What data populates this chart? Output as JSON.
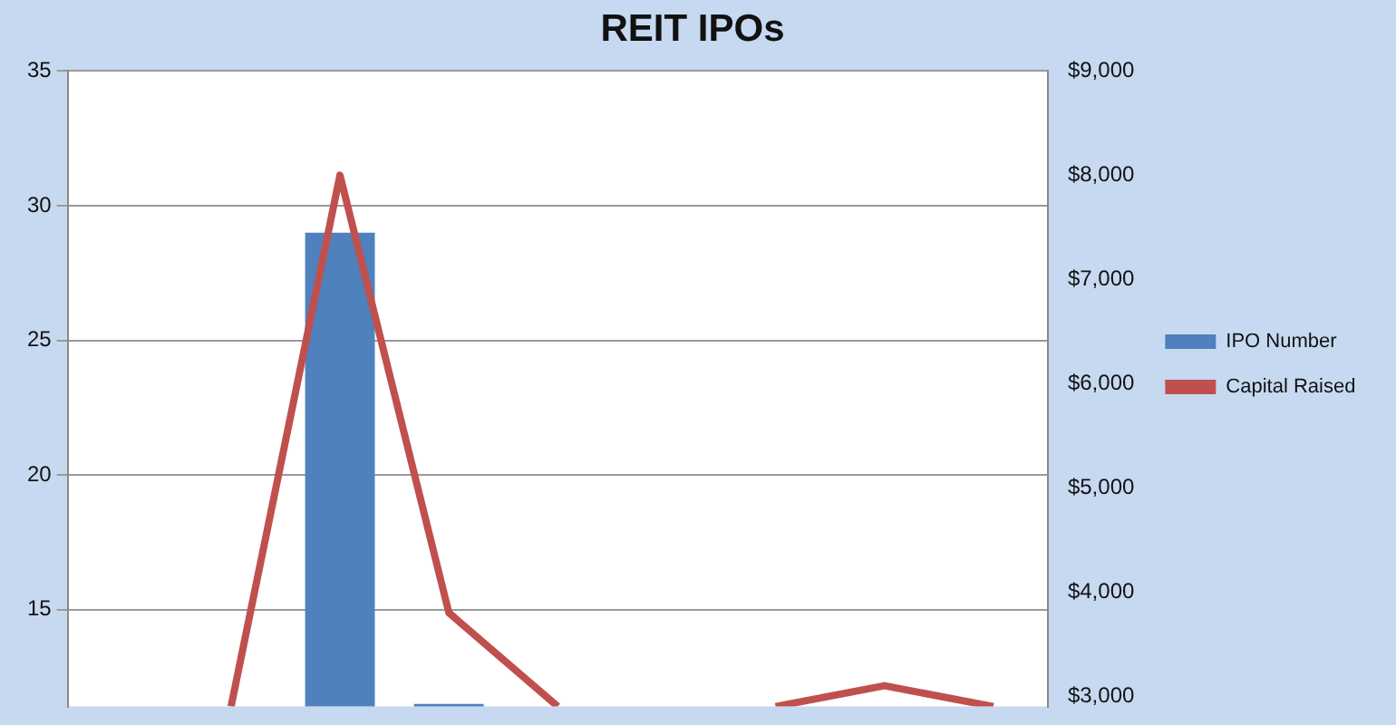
{
  "chart_data": {
    "type": "bar",
    "title": "REIT IPOs",
    "categories": [
      null,
      null,
      null,
      null,
      null,
      null,
      null,
      null,
      null
    ],
    "series": [
      {
        "name": "IPO Number",
        "color": "#4f81bd",
        "values": [
          null,
          null,
          29,
          11.5,
          null,
          null,
          null,
          null,
          null
        ]
      },
      {
        "name": "Capital Raised",
        "type": "line",
        "color": "#c0504d",
        "axis": "y2",
        "marker": "none",
        "values": [
          null,
          2900,
          8000,
          3800,
          2900,
          null,
          2900,
          3100,
          2900
        ]
      }
    ],
    "ylim": [
      11.4,
      35
    ],
    "yticks": [
      15,
      20,
      25,
      30,
      35
    ],
    "y2lim": [
      2900,
      9000
    ],
    "y2ticks": [
      {
        "value": 3000,
        "label": "$3,000"
      },
      {
        "value": 4000,
        "label": "$4,000"
      },
      {
        "value": 5000,
        "label": "$5,000"
      },
      {
        "value": 6000,
        "label": "$6,000"
      },
      {
        "value": 7000,
        "label": "$7,000"
      },
      {
        "value": 8000,
        "label": "$8,000"
      },
      {
        "value": 9000,
        "label": "$9,000"
      }
    ],
    "grid": "y",
    "legend": "right",
    "tick_labels": "y"
  }
}
